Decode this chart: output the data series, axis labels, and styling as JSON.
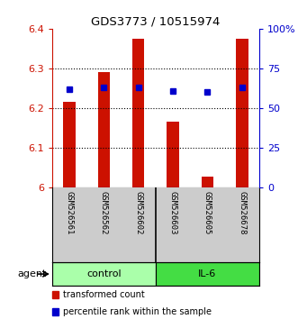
{
  "title": "GDS3773 / 10515974",
  "samples": [
    "GSM526561",
    "GSM526562",
    "GSM526602",
    "GSM526603",
    "GSM526605",
    "GSM526678"
  ],
  "bar_values": [
    6.215,
    6.29,
    6.375,
    6.165,
    6.027,
    6.375
  ],
  "bar_baseline": 6.0,
  "percentile_values": [
    62,
    63,
    63,
    61,
    60,
    63
  ],
  "ylim_left": [
    6.0,
    6.4
  ],
  "ylim_right": [
    0,
    100
  ],
  "yticks_left": [
    6.0,
    6.1,
    6.2,
    6.3,
    6.4
  ],
  "yticks_right": [
    0,
    25,
    50,
    75,
    100
  ],
  "ytick_labels_right": [
    "0",
    "25",
    "50",
    "75",
    "100%"
  ],
  "ytick_labels_left": [
    "6",
    "6.1",
    "6.2",
    "6.3",
    "6.4"
  ],
  "bar_color": "#cc1100",
  "dot_color": "#0000cc",
  "groups": [
    {
      "label": "control",
      "indices": [
        0,
        1,
        2
      ],
      "color": "#aaffaa"
    },
    {
      "label": "IL-6",
      "indices": [
        3,
        4,
        5
      ],
      "color": "#44dd44"
    }
  ],
  "sample_bg_color": "#cccccc",
  "legend": [
    {
      "color": "#cc1100",
      "label": "transformed count"
    },
    {
      "color": "#0000cc",
      "label": "percentile rank within the sample"
    }
  ],
  "bar_width": 0.35
}
